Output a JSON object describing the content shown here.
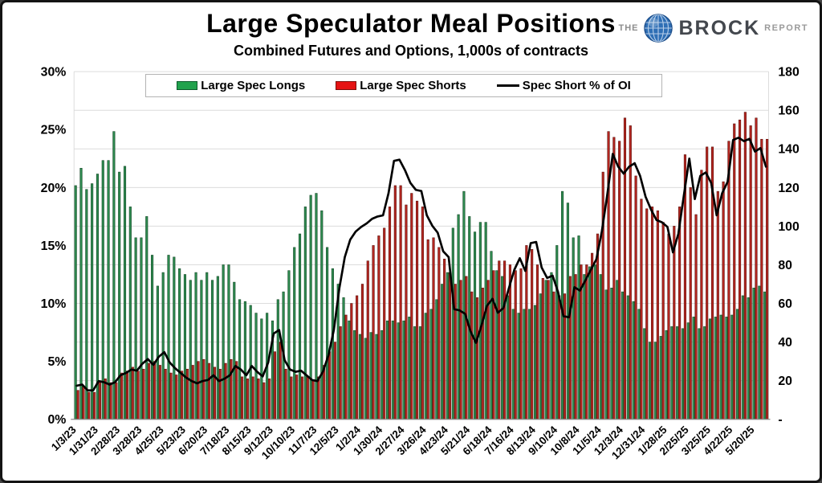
{
  "title": "Large Speculator Meal Positions",
  "subtitle": "Combined Futures and Options, 1,000s of contracts",
  "logo": {
    "the": "THE",
    "brock": "BROCK",
    "report": "REPORT",
    "globe_color": "#2f6fb5"
  },
  "legend": {
    "longs_label": "Large Spec Longs",
    "shorts_label": "Large Spec Shorts",
    "line_label": "Spec Short % of OI"
  },
  "colors": {
    "long_bar": "#2e8b50",
    "long_edge": "#164a28",
    "short_bar": "#b52620",
    "short_edge": "#5e110c",
    "line": "#000000",
    "grid": "#dcdcdc",
    "axis": "#8c8c8c"
  },
  "chart_data": {
    "type": "bar",
    "overlay": "line",
    "frequency": "weekly",
    "x_tick_labels": [
      "1/3/23",
      "1/31/23",
      "2/28/23",
      "3/28/23",
      "4/25/23",
      "5/23/23",
      "6/20/23",
      "7/18/23",
      "8/15/23",
      "9/12/23",
      "10/10/23",
      "11/7/23",
      "12/5/23",
      "1/2/24",
      "1/30/24",
      "2/27/24",
      "3/26/24",
      "4/23/24",
      "5/21/24",
      "6/18/24",
      "7/16/24",
      "8/13/24",
      "9/10/24",
      "10/8/24",
      "11/5/24",
      "12/3/24",
      "12/31/24",
      "1/28/25",
      "2/25/25",
      "3/25/25",
      "4/22/25",
      "5/20/25"
    ],
    "x_tick_every": 4,
    "left_axis": {
      "min": 0,
      "max": 30,
      "step": 5,
      "unit": "%",
      "labels": [
        "30%",
        "25%",
        "20%",
        "15%",
        "10%",
        "5%",
        "0%"
      ]
    },
    "right_axis": {
      "min": 0,
      "max": 180,
      "step": 20,
      "labels": [
        "180",
        "160",
        "140",
        "120",
        "100",
        "80",
        "60",
        "40",
        "20",
        "-"
      ]
    },
    "grid": true,
    "legend_position": "top",
    "series": [
      {
        "name": "Large Spec Longs",
        "type": "bar",
        "axis": "right",
        "values": [
          121,
          130,
          119,
          122,
          127,
          134,
          134,
          149,
          128,
          131,
          110,
          94,
          94,
          105,
          85,
          69,
          76,
          85,
          84,
          78,
          75,
          72,
          76,
          72,
          76,
          72,
          74,
          80,
          80,
          71,
          62,
          61,
          59,
          55,
          52,
          55,
          51,
          62,
          66,
          77,
          89,
          96,
          110,
          116,
          117,
          108,
          89,
          78,
          70,
          63,
          51,
          46,
          44,
          42,
          45,
          44,
          46,
          51,
          51,
          50,
          51,
          53,
          48,
          48,
          55,
          57,
          62,
          70,
          76,
          99,
          106,
          118,
          105,
          97,
          102,
          102,
          87,
          77,
          74,
          64,
          57,
          55,
          57,
          57,
          59,
          65,
          72,
          76,
          90,
          118,
          112,
          94,
          95,
          75,
          79,
          80,
          75,
          67,
          68,
          72,
          66,
          64,
          61,
          57,
          47,
          40,
          40,
          43,
          46,
          48,
          48,
          47,
          50,
          53,
          47,
          48,
          52,
          53,
          54,
          53,
          54,
          57,
          64,
          63,
          68,
          69,
          66
        ]
      },
      {
        "name": "Large Spec Shorts",
        "type": "bar",
        "axis": "right",
        "values": [
          15,
          17,
          14,
          14,
          20,
          21,
          19,
          19,
          24,
          25,
          27,
          25,
          26,
          29,
          30,
          28,
          26,
          24,
          23,
          25,
          26,
          28,
          30,
          31,
          29,
          27,
          26,
          29,
          31,
          30,
          22,
          21,
          22,
          21,
          19,
          21,
          35,
          40,
          26,
          22,
          23,
          22,
          22,
          20,
          22,
          28,
          35,
          40,
          48,
          54,
          60,
          64,
          70,
          82,
          90,
          95,
          99,
          110,
          121,
          121,
          111,
          117,
          113,
          110,
          93,
          94,
          89,
          83,
          76,
          70,
          72,
          74,
          66,
          63,
          68,
          72,
          77,
          82,
          82,
          80,
          77,
          78,
          90,
          88,
          80,
          73,
          72,
          66,
          64,
          65,
          74,
          75,
          80,
          80,
          86,
          96,
          128,
          149,
          146,
          144,
          156,
          152,
          126,
          114,
          109,
          110,
          108,
          102,
          96,
          100,
          110,
          137,
          120,
          106,
          129,
          141,
          141,
          118,
          123,
          144,
          153,
          155,
          159,
          152,
          156,
          145,
          145
        ]
      },
      {
        "name": "Spec Short % of OI",
        "type": "line",
        "axis": "left",
        "values": [
          2.9,
          3.0,
          2.5,
          2.5,
          3.3,
          3.2,
          3.0,
          3.2,
          3.8,
          4.0,
          4.3,
          4.2,
          4.8,
          5.2,
          4.7,
          5.4,
          5.8,
          4.9,
          4.4,
          4.0,
          3.6,
          3.3,
          3.1,
          3.3,
          3.4,
          3.8,
          3.3,
          3.5,
          3.8,
          4.6,
          4.3,
          3.8,
          4.6,
          4.1,
          3.7,
          4.9,
          7.4,
          7.7,
          5.1,
          4.3,
          4.1,
          4.2,
          3.8,
          3.4,
          3.3,
          4.1,
          5.5,
          7.7,
          11.3,
          14.0,
          15.5,
          16.2,
          16.6,
          16.9,
          17.3,
          17.5,
          17.6,
          19.5,
          22.3,
          22.4,
          21.5,
          20.4,
          19.8,
          19.7,
          17.6,
          16.7,
          16.1,
          14.5,
          14.0,
          9.5,
          9.4,
          9.1,
          7.6,
          6.6,
          8.1,
          9.8,
          10.4,
          9.2,
          9.6,
          11.3,
          12.9,
          13.9,
          12.8,
          15.2,
          15.3,
          13.1,
          12.2,
          12.4,
          11.0,
          8.9,
          8.8,
          11.4,
          11.1,
          12.0,
          12.9,
          13.8,
          16.2,
          19.4,
          22.9,
          21.8,
          21.2,
          21.8,
          22.1,
          21.0,
          19.2,
          18.1,
          17.2,
          17.0,
          16.6,
          14.4,
          16.0,
          19.3,
          22.5,
          19.0,
          21.0,
          21.3,
          20.4,
          17.6,
          19.5,
          20.5,
          24.1,
          24.3,
          24.0,
          24.2,
          23.1,
          23.4,
          21.8
        ]
      }
    ]
  }
}
